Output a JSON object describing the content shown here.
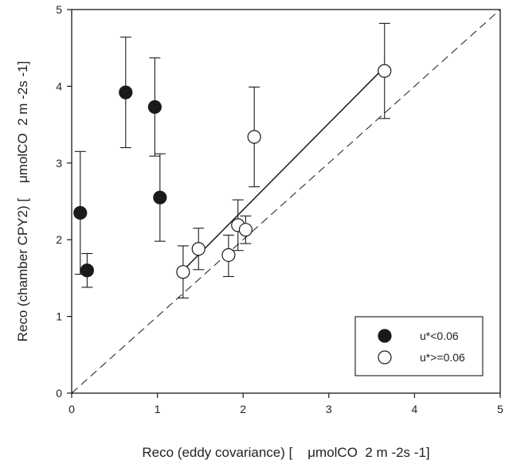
{
  "chart_data": {
    "type": "scatter",
    "xlabel": "Reco (eddy covariance) [    μmolCO  2 m -2s -1]",
    "ylabel": "Reco (chamber CPY2) [    μmolCO  2 m -2s -1]",
    "xlim": [
      0,
      5
    ],
    "ylim": [
      0,
      5
    ],
    "x_ticks": [
      "0",
      "1",
      "2",
      "3",
      "4",
      "5"
    ],
    "y_ticks": [
      "0",
      "1",
      "2",
      "3",
      "4",
      "5"
    ],
    "grid": false,
    "legend_position": "bottom-right",
    "series": [
      {
        "name": "u*<0.06",
        "marker": "filled-circle",
        "color": "#1a1a1a",
        "points": [
          {
            "x": 0.1,
            "y": 2.35,
            "err_low": 1.55,
            "err_high": 3.15
          },
          {
            "x": 0.18,
            "y": 1.6,
            "err_low": 1.38,
            "err_high": 1.82
          },
          {
            "x": 0.63,
            "y": 3.92,
            "err_low": 3.2,
            "err_high": 4.64
          },
          {
            "x": 0.97,
            "y": 3.73,
            "err_low": 3.09,
            "err_high": 4.37
          },
          {
            "x": 1.03,
            "y": 2.55,
            "err_low": 1.98,
            "err_high": 3.12
          }
        ]
      },
      {
        "name": "u*>=0.06",
        "marker": "open-circle",
        "color": "#1a1a1a",
        "points": [
          {
            "x": 1.3,
            "y": 1.58,
            "err_low": 1.24,
            "err_high": 1.92
          },
          {
            "x": 1.48,
            "y": 1.88,
            "err_low": 1.61,
            "err_high": 2.15
          },
          {
            "x": 1.83,
            "y": 1.8,
            "err_low": 1.52,
            "err_high": 2.06
          },
          {
            "x": 1.94,
            "y": 2.19,
            "err_low": 1.86,
            "err_high": 2.52
          },
          {
            "x": 2.03,
            "y": 2.13,
            "err_low": 1.95,
            "err_high": 2.31
          },
          {
            "x": 2.13,
            "y": 3.34,
            "err_low": 2.69,
            "err_high": 3.99
          },
          {
            "x": 3.65,
            "y": 4.2,
            "err_low": 3.58,
            "err_high": 4.82
          }
        ]
      }
    ],
    "regression_line": {
      "x": [
        1.3,
        3.65
      ],
      "y": [
        1.6,
        4.25
      ]
    },
    "one_to_one_line": {
      "x": [
        0,
        5
      ],
      "y": [
        0,
        5
      ]
    }
  }
}
